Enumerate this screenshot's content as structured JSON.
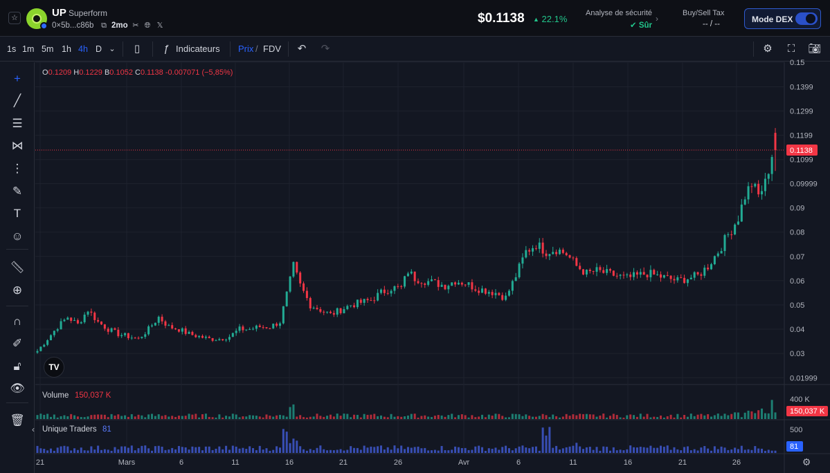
{
  "token": {
    "symbol": "UP",
    "name": "Superform",
    "address": "0×5b...c86b",
    "age": "2mo",
    "price": "$0.1138",
    "change": "22.1%",
    "change_arrow": "▲"
  },
  "security": {
    "title": "Analyse de sécurité",
    "status": "Sûr"
  },
  "tax": {
    "title": "Buy/Sell Tax",
    "value": "-- / --"
  },
  "dex_mode": {
    "label": "Mode DEX",
    "enabled": true
  },
  "toolbar": {
    "timeframes": [
      "1s",
      "1m",
      "5m",
      "1h",
      "4h",
      "D"
    ],
    "active_timeframe": "4h",
    "indicators_label": "Indicateurs",
    "price_label": "Prix",
    "slash": "/",
    "fdv_label": "FDV"
  },
  "ohlc": {
    "o_label": "O",
    "o": "0.1209",
    "h_label": "H",
    "h": "0.1229",
    "b_label": "B",
    "b": "0.1052",
    "c_label": "C",
    "c": "0.1138",
    "change": "-0.007071 (−5,85%)"
  },
  "volume_pane": {
    "title": "Volume",
    "value": "150,037 K",
    "axis_label": "400 K",
    "badge": "150,037 K"
  },
  "traders_pane": {
    "title": "Unique Traders",
    "value": "81",
    "axis_label": "500",
    "badge": "81"
  },
  "logo_text": "TV",
  "colors": {
    "up": "#22ab94",
    "down": "#f23645",
    "accent": "#2962ff",
    "bg": "#131722"
  },
  "chart_data": {
    "type": "candlestick",
    "interval": "4h",
    "y_ticks": [
      "0.15",
      "0.1399",
      "0.1299",
      "0.1199",
      "0.1099",
      "0.09999",
      "0.09",
      "0.08",
      "0.07",
      "0.06",
      "0.05",
      "0.04",
      "0.03",
      "0.01999"
    ],
    "x_ticks": [
      "21",
      "Mars",
      "6",
      "11",
      "16",
      "21",
      "26",
      "Avr",
      "6",
      "11",
      "16",
      "21",
      "26"
    ],
    "last_price_label": "0.1138",
    "ylim": [
      0.0175,
      0.15
    ],
    "anchors": [
      [
        0,
        0.031
      ],
      [
        3,
        0.036
      ],
      [
        6,
        0.041
      ],
      [
        9,
        0.045
      ],
      [
        12,
        0.042
      ],
      [
        15,
        0.048
      ],
      [
        18,
        0.043
      ],
      [
        21,
        0.04
      ],
      [
        24,
        0.038
      ],
      [
        27,
        0.037
      ],
      [
        30,
        0.036
      ],
      [
        33,
        0.04
      ],
      [
        36,
        0.045
      ],
      [
        39,
        0.041
      ],
      [
        42,
        0.04
      ],
      [
        45,
        0.038
      ],
      [
        48,
        0.037
      ],
      [
        51,
        0.036
      ],
      [
        54,
        0.036
      ],
      [
        57,
        0.037
      ],
      [
        60,
        0.04
      ],
      [
        63,
        0.04
      ],
      [
        66,
        0.041
      ],
      [
        69,
        0.041
      ],
      [
        72,
        0.043
      ],
      [
        75,
        0.06
      ],
      [
        76,
        0.066
      ],
      [
        78,
        0.058
      ],
      [
        81,
        0.05
      ],
      [
        84,
        0.048
      ],
      [
        87,
        0.046
      ],
      [
        90,
        0.048
      ],
      [
        93,
        0.05
      ],
      [
        96,
        0.051
      ],
      [
        99,
        0.052
      ],
      [
        102,
        0.055
      ],
      [
        105,
        0.057
      ],
      [
        108,
        0.057
      ],
      [
        110,
        0.064
      ],
      [
        112,
        0.061
      ],
      [
        115,
        0.06
      ],
      [
        118,
        0.059
      ],
      [
        121,
        0.058
      ],
      [
        124,
        0.06
      ],
      [
        127,
        0.059
      ],
      [
        130,
        0.057
      ],
      [
        133,
        0.056
      ],
      [
        136,
        0.055
      ],
      [
        139,
        0.053
      ],
      [
        142,
        0.062
      ],
      [
        145,
        0.072
      ],
      [
        148,
        0.075
      ],
      [
        151,
        0.072
      ],
      [
        154,
        0.073
      ],
      [
        157,
        0.071
      ],
      [
        160,
        0.066
      ],
      [
        163,
        0.063
      ],
      [
        166,
        0.064
      ],
      [
        169,
        0.063
      ],
      [
        172,
        0.062
      ],
      [
        175,
        0.061
      ],
      [
        178,
        0.062
      ],
      [
        181,
        0.063
      ],
      [
        184,
        0.062
      ],
      [
        187,
        0.061
      ],
      [
        190,
        0.06
      ],
      [
        193,
        0.061
      ],
      [
        196,
        0.062
      ],
      [
        199,
        0.066
      ],
      [
        202,
        0.072
      ],
      [
        205,
        0.079
      ],
      [
        208,
        0.086
      ],
      [
        210,
        0.095
      ],
      [
        212,
        0.1
      ],
      [
        214,
        0.095
      ],
      [
        216,
        0.1
      ],
      [
        218,
        0.112
      ],
      [
        219,
        0.1138
      ]
    ],
    "last_candle": {
      "open": 0.1209,
      "high": 0.1229,
      "low": 0.1052,
      "close": 0.1138
    }
  }
}
